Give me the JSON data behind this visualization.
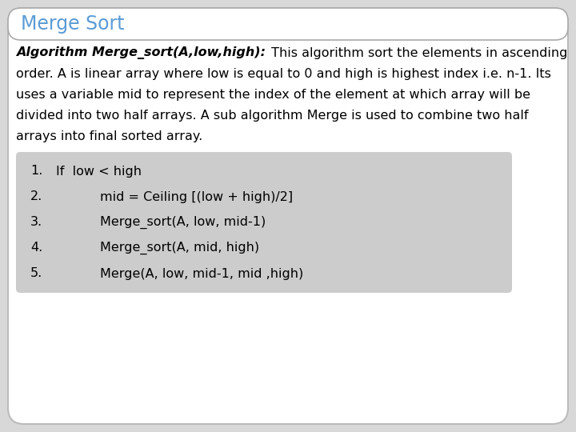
{
  "title": "Merge Sort",
  "title_color": "#5B9BD5",
  "main_bg": "#FFFFFF",
  "outer_bg": "#D8D8D8",
  "code_bg": "#CCCCCC",
  "desc_bold": "Algorithm Merge_sort(A,low,high):",
  "desc_lines": [
    {
      "bold": "Algorithm Merge_sort(A,low,high):",
      "normal": " This algorithm sort the elements in ascending"
    },
    {
      "bold": "",
      "normal": "order. A is linear array where low is equal to 0 and high is highest index i.e. n-1. Its"
    },
    {
      "bold": "",
      "normal": "uses a variable mid to represent the index of the element at which array will be"
    },
    {
      "bold": "",
      "normal": "divided into two half arrays. A sub algorithm Merge is used to combine two half"
    },
    {
      "bold": "",
      "normal": "arrays into final sorted array."
    }
  ],
  "code_lines": [
    {
      "num": "1.",
      "indent": 0,
      "text": "If  low < high"
    },
    {
      "num": "2.",
      "indent": 1,
      "text": "mid = Ceiling [(low + high)/2]"
    },
    {
      "num": "3.",
      "indent": 1,
      "text": "Merge_sort(A, low, mid-1)"
    },
    {
      "num": "4.",
      "indent": 1,
      "text": "Merge_sort(A, mid, high)"
    },
    {
      "num": "5.",
      "indent": 1,
      "text": "Merge(A, low, mid-1, mid ,high)"
    }
  ],
  "font_size_title": 17,
  "font_size_desc": 11.5,
  "font_size_code": 11.5
}
